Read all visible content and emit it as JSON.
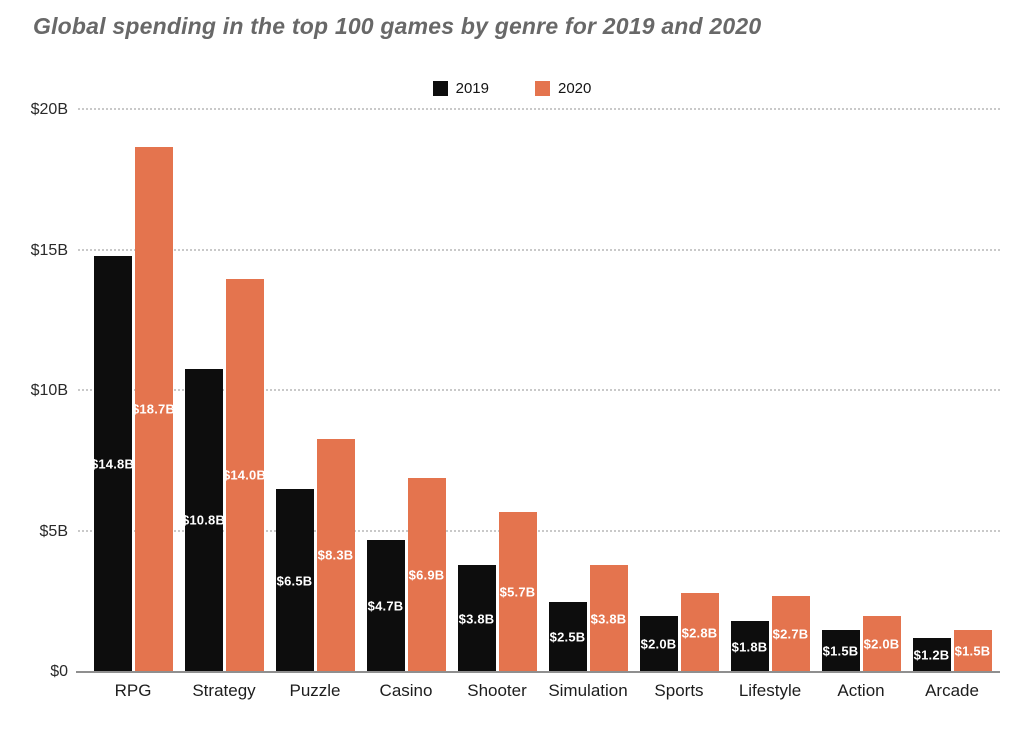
{
  "title": "Global spending in the top 100 games by genre for 2019 and 2020",
  "legend": [
    {
      "label": "2019",
      "color": "#0d0d0d"
    },
    {
      "label": "2020",
      "color": "#e4744e"
    }
  ],
  "chart_data": {
    "type": "bar",
    "title": "Global spending in the top 100 games by genre for 2019 and 2020",
    "categories": [
      "RPG",
      "Strategy",
      "Puzzle",
      "Casino",
      "Shooter",
      "Simulation",
      "Sports",
      "Lifestyle",
      "Action",
      "Arcade"
    ],
    "series": [
      {
        "name": "2019",
        "color": "#0d0d0d",
        "values": [
          14.8,
          10.8,
          6.5,
          4.7,
          3.8,
          2.5,
          2.0,
          1.8,
          1.5,
          1.2
        ],
        "labels": [
          "$14.8B",
          "$10.8B",
          "$6.5B",
          "$4.7B",
          "$3.8B",
          "$2.5B",
          "$2.0B",
          "$1.8B",
          "$1.5B",
          "$1.2B"
        ]
      },
      {
        "name": "2020",
        "color": "#e4744e",
        "values": [
          18.7,
          14.0,
          8.3,
          6.9,
          5.7,
          3.8,
          2.8,
          2.7,
          2.0,
          1.5
        ],
        "labels": [
          "$18.7B",
          "$14.0B",
          "$8.3B",
          "$6.9B",
          "$5.7B",
          "$3.8B",
          "$2.8B",
          "$2.7B",
          "$2.0B",
          "$1.5B"
        ]
      }
    ],
    "xlabel": "",
    "ylabel": "",
    "ylim": [
      0,
      20
    ],
    "y_axis_ticks": [
      {
        "value": 0,
        "label": "$0"
      },
      {
        "value": 5,
        "label": "$5B"
      },
      {
        "value": 10,
        "label": "$10B"
      },
      {
        "value": 15,
        "label": "$15B"
      },
      {
        "value": 20,
        "label": "$20B"
      }
    ],
    "grid": "horizontal-dotted",
    "legend_position": "top-center",
    "value_labels": "white, bold, centered inside bars"
  }
}
